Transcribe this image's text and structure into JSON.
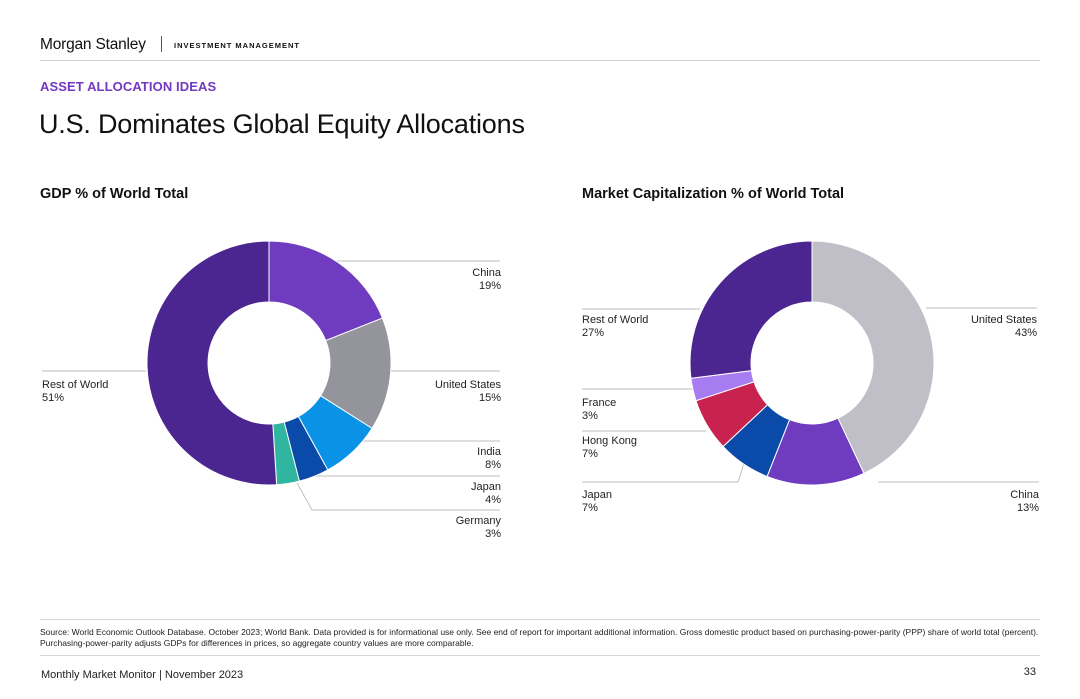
{
  "header": {
    "brand": "Morgan Stanley",
    "division": "INVESTMENT MANAGEMENT"
  },
  "section_label": "ASSET ALLOCATION IDEAS",
  "page_title": "U.S. Dominates Global Equity Allocations",
  "colors": {
    "accent": "#7138c2",
    "dark_purple": "#4b2590",
    "purple": "#6f3bbf",
    "gray": "#94949c",
    "light_gray": "#c0bfc8",
    "sky_blue": "#0a93e6",
    "navy": "#0a4aa8",
    "teal": "#2fb5a0",
    "lavender": "#a77cf0",
    "crimson": "#c8234f"
  },
  "chart_data": [
    {
      "type": "pie",
      "title": "GDP % of World Total",
      "slices": [
        {
          "name": "China",
          "value": 19,
          "label": "19%",
          "color": "#6f3bbf"
        },
        {
          "name": "United States",
          "value": 15,
          "label": "15%",
          "color": "#94949c"
        },
        {
          "name": "India",
          "value": 8,
          "label": "8%",
          "color": "#0a93e6"
        },
        {
          "name": "Japan",
          "value": 4,
          "label": "4%",
          "color": "#0a4aa8"
        },
        {
          "name": "Germany",
          "value": 3,
          "label": "3%",
          "color": "#2fb5a0"
        },
        {
          "name": "Rest of World",
          "value": 51,
          "label": "51%",
          "color": "#4b2590"
        }
      ]
    },
    {
      "type": "pie",
      "title": "Market Capitalization % of World Total",
      "slices": [
        {
          "name": "United States",
          "value": 43,
          "label": "43%",
          "color": "#c0bfc8"
        },
        {
          "name": "China",
          "value": 13,
          "label": "13%",
          "color": "#6f3bbf"
        },
        {
          "name": "Japan",
          "value": 7,
          "label": "7%",
          "color": "#0a4aa8"
        },
        {
          "name": "Hong Kong",
          "value": 7,
          "label": "7%",
          "color": "#c8234f"
        },
        {
          "name": "France",
          "value": 3,
          "label": "3%",
          "color": "#a77cf0"
        },
        {
          "name": "Rest of World",
          "value": 27,
          "label": "27%",
          "color": "#4b2590"
        }
      ]
    }
  ],
  "source": "Source: World Economic Outlook Database. October 2023; World Bank. Data provided is for informational use only. See end of report for important additional information. Gross domestic product based on purchasing-power-parity (PPP) share of world total (percent). Purchasing-power-parity adjusts GDPs for differences in prices, so aggregate country values are more comparable.",
  "footer": {
    "publication": "Monthly Market Monitor | November 2023",
    "page_number": "33"
  }
}
